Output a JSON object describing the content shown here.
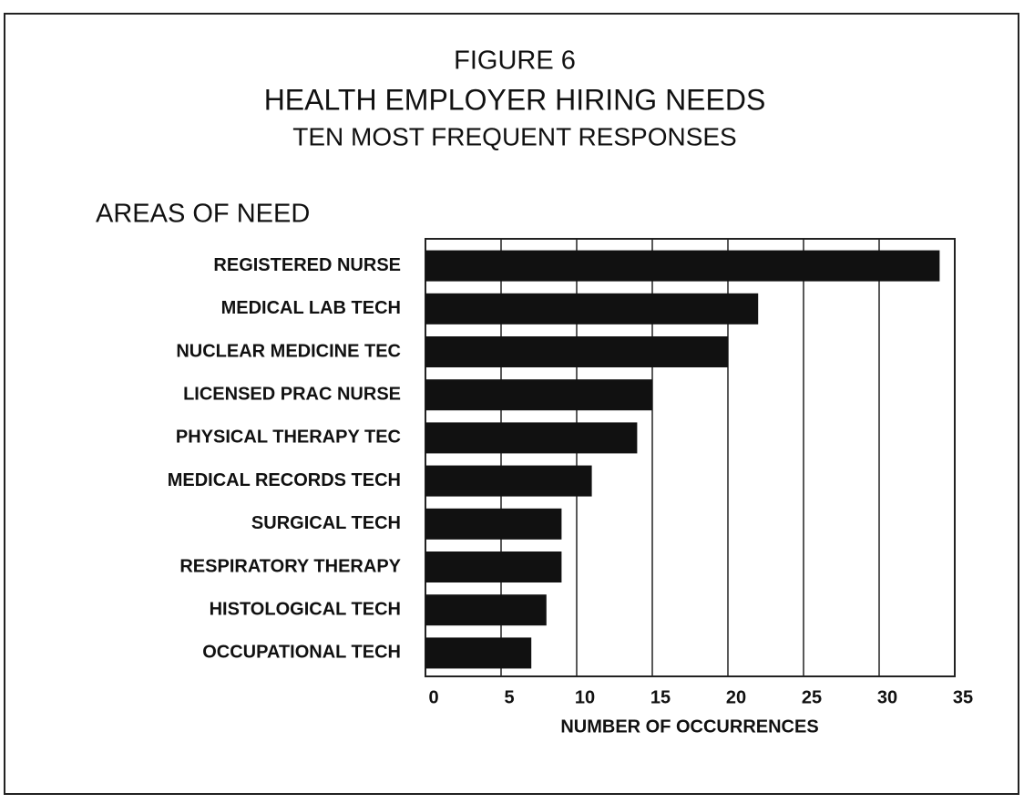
{
  "chart_data": {
    "type": "barh",
    "title_lines": [
      "FIGURE 6",
      "HEALTH EMPLOYER HIRING NEEDS",
      "TEN MOST FREQUENT RESPONSES"
    ],
    "y_axis_label": "AREAS OF NEED",
    "x_axis_label": "NUMBER OF OCCURRENCES",
    "categories": [
      "REGISTERED NURSE",
      "MEDICAL LAB TECH",
      "NUCLEAR MEDICINE TEC",
      "LICENSED PRAC NURSE",
      "PHYSICAL THERAPY TEC",
      "MEDICAL RECORDS TECH",
      "SURGICAL TECH",
      "RESPIRATORY THERAPY",
      "HISTOLOGICAL TECH",
      "OCCUPATIONAL TECH"
    ],
    "values": [
      34,
      22,
      20,
      15,
      14,
      11,
      9,
      9,
      8,
      7
    ],
    "color": "#111111",
    "xlim": [
      0,
      35
    ],
    "xticks": [
      0,
      5,
      10,
      15,
      20,
      25,
      30,
      35
    ],
    "grid": true
  }
}
